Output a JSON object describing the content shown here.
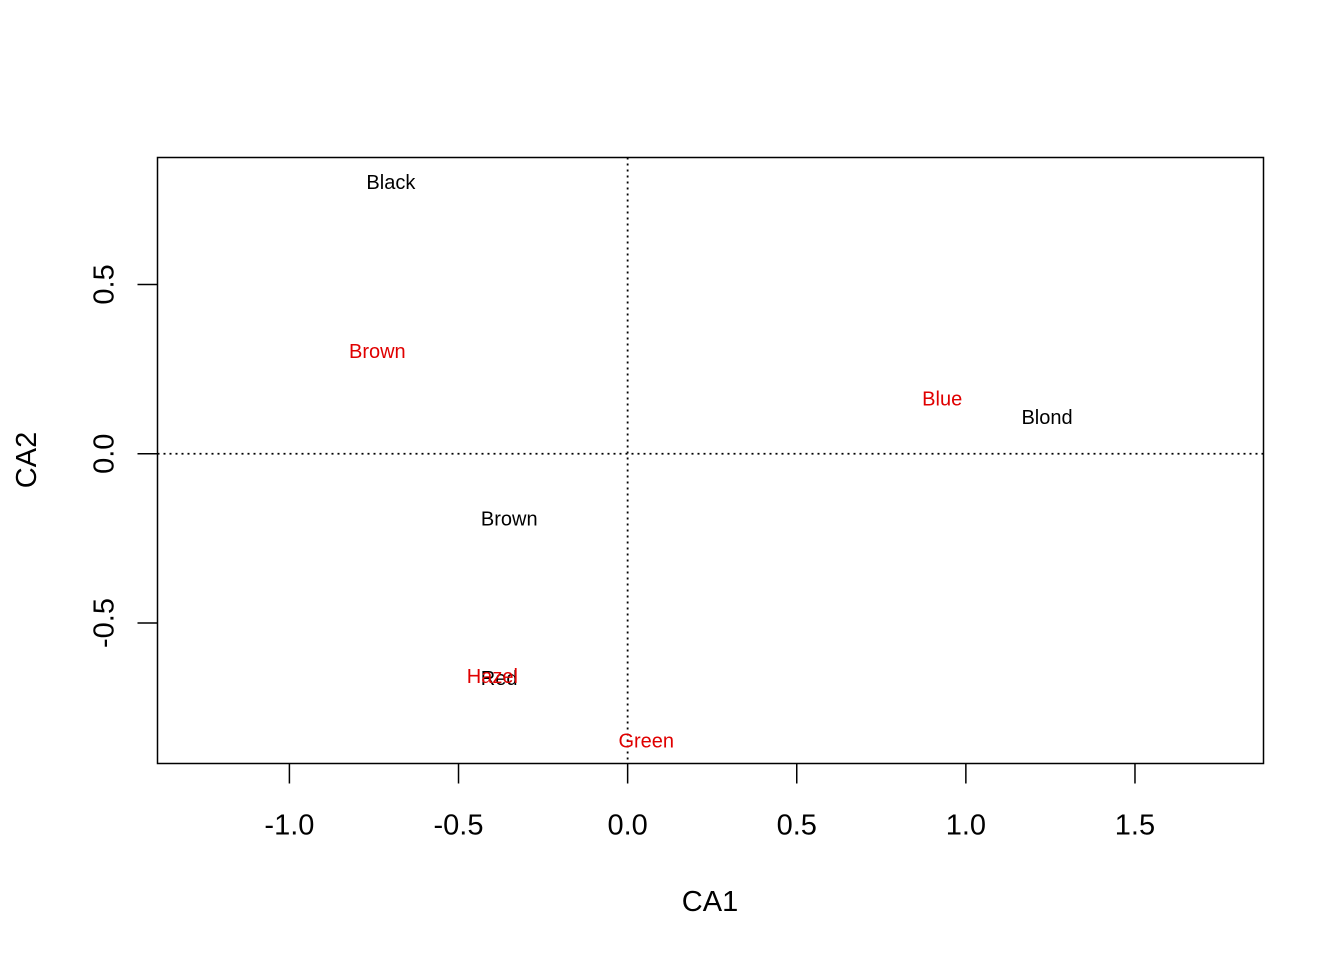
{
  "chart_data": {
    "type": "scatter",
    "title": "",
    "xlabel": "CA1",
    "ylabel": "CA2",
    "xlim": [
      -1.39,
      1.88
    ],
    "ylim": [
      -0.915,
      0.875
    ],
    "x_ticks": [
      {
        "value": -1.0,
        "label": "-1.0"
      },
      {
        "value": -0.5,
        "label": "-0.5"
      },
      {
        "value": 0.0,
        "label": "0.0"
      },
      {
        "value": 0.5,
        "label": "0.5"
      },
      {
        "value": 1.0,
        "label": "1.0"
      },
      {
        "value": 1.5,
        "label": "1.5"
      }
    ],
    "y_ticks": [
      {
        "value": -0.5,
        "label": "-0.5"
      },
      {
        "value": 0.0,
        "label": "0.0"
      },
      {
        "value": 0.5,
        "label": "0.5"
      }
    ],
    "reference_lines": {
      "x": 0,
      "y": 0,
      "style": "dotted"
    },
    "grid": false,
    "series": [
      {
        "color": "#000000",
        "points": [
          {
            "label": "Black",
            "x": -0.7,
            "y": 0.8
          },
          {
            "label": "Brown",
            "x": -0.35,
            "y": -0.195
          },
          {
            "label": "Red",
            "x": -0.38,
            "y": -0.665
          },
          {
            "label": "Blond",
            "x": 1.24,
            "y": 0.105
          }
        ]
      },
      {
        "color": "#e00000",
        "points": [
          {
            "label": "Brown",
            "x": -0.74,
            "y": 0.3
          },
          {
            "label": "Blue",
            "x": 0.93,
            "y": 0.16
          },
          {
            "label": "Hazel",
            "x": -0.4,
            "y": -0.66
          },
          {
            "label": "Green",
            "x": 0.055,
            "y": -0.85
          }
        ]
      }
    ]
  }
}
